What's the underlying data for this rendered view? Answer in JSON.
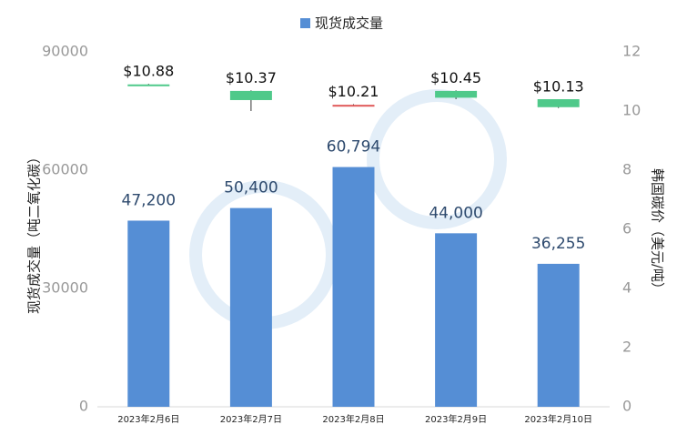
{
  "chart_data": {
    "type": "bar",
    "legend": "top",
    "y_label": "现货成交量（吨二氧化碳）",
    "y2_label": "韩国碳价（美元/吨）",
    "categories": [
      "2023年2月6日",
      "2023年2月7日",
      "2023年2月8日",
      "2023年2月9日",
      "2023年2月10日"
    ],
    "ylim": [
      0,
      90000
    ],
    "yticks": [
      0,
      30000,
      60000,
      90000
    ],
    "y2lim": [
      0,
      12
    ],
    "y2ticks": [
      0,
      2,
      4,
      6,
      8,
      10,
      12
    ],
    "series": [
      {
        "name": "现货成交量",
        "type": "bar",
        "color": "#558ed5",
        "values": [
          47200,
          50400,
          60794,
          44000,
          36255
        ],
        "value_labels": [
          "47,200",
          "50,400",
          "60,794",
          "44,000",
          "36,255"
        ]
      },
      {
        "type": "candlestick",
        "axis": "y2",
        "up_color": "#e05a5a",
        "down_color": "#4fc98a",
        "open": [
          10.9,
          10.68,
          10.2,
          10.68,
          10.4
        ],
        "high": [
          10.92,
          10.7,
          10.23,
          10.7,
          10.4
        ],
        "low": [
          10.85,
          10.0,
          10.18,
          10.4,
          10.1
        ],
        "close": [
          10.88,
          10.37,
          10.21,
          10.45,
          10.13
        ],
        "value_labels": [
          "$10.88",
          "$10.37",
          "$10.21",
          "$10.45",
          "$10.13"
        ]
      }
    ]
  }
}
